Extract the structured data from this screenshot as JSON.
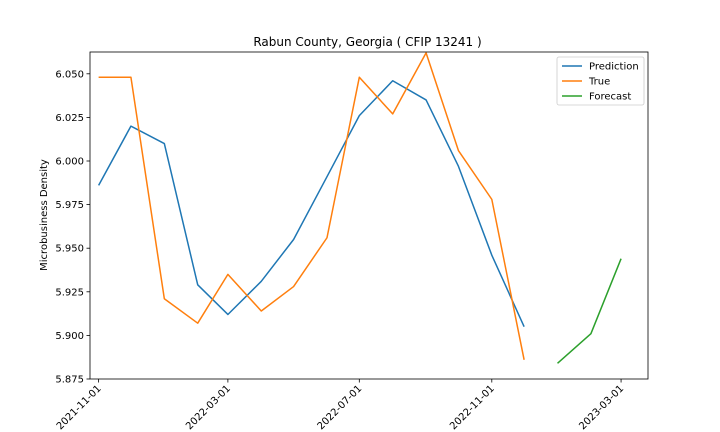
{
  "chart_data": {
    "type": "line",
    "title": "Rabun County, Georgia ( CFIP 13241 )",
    "xlabel": "",
    "ylabel": "Microbusiness Density",
    "xlim": [
      "2021-10-24",
      "2023-03-26"
    ],
    "ylim": [
      5.875,
      6.0625
    ],
    "x_ticks": [
      "2021-11-01",
      "2022-03-01",
      "2022-07-01",
      "2022-11-01",
      "2023-03-01"
    ],
    "y_ticks": [
      "5.875",
      "5.900",
      "5.925",
      "5.950",
      "5.975",
      "6.000",
      "6.025",
      "6.050"
    ],
    "legend_position": "top-right",
    "grid": false,
    "series": [
      {
        "name": "Prediction",
        "color": "#1f77b4",
        "x": [
          "2021-11-01",
          "2021-12-01",
          "2022-01-01",
          "2022-02-01",
          "2022-03-01",
          "2022-04-01",
          "2022-05-01",
          "2022-06-01",
          "2022-07-01",
          "2022-08-01",
          "2022-09-01",
          "2022-10-01",
          "2022-11-01",
          "2022-12-01"
        ],
        "values": [
          5.986,
          6.02,
          6.01,
          5.929,
          5.912,
          5.931,
          5.955,
          5.991,
          6.026,
          6.046,
          6.035,
          5.997,
          5.946,
          5.905
        ]
      },
      {
        "name": "True",
        "color": "#ff7f0e",
        "x": [
          "2021-11-01",
          "2021-12-01",
          "2022-01-01",
          "2022-02-01",
          "2022-03-01",
          "2022-04-01",
          "2022-05-01",
          "2022-06-01",
          "2022-07-01",
          "2022-08-01",
          "2022-09-01",
          "2022-10-01",
          "2022-11-01",
          "2022-12-01"
        ],
        "values": [
          6.048,
          6.048,
          5.921,
          5.907,
          5.935,
          5.914,
          5.928,
          5.956,
          6.048,
          6.027,
          6.062,
          6.006,
          5.978,
          5.886
        ]
      },
      {
        "name": "Forecast",
        "color": "#2ca02c",
        "x": [
          "2023-01-01",
          "2023-02-01",
          "2023-03-01"
        ],
        "values": [
          5.884,
          5.901,
          5.944
        ]
      }
    ]
  }
}
